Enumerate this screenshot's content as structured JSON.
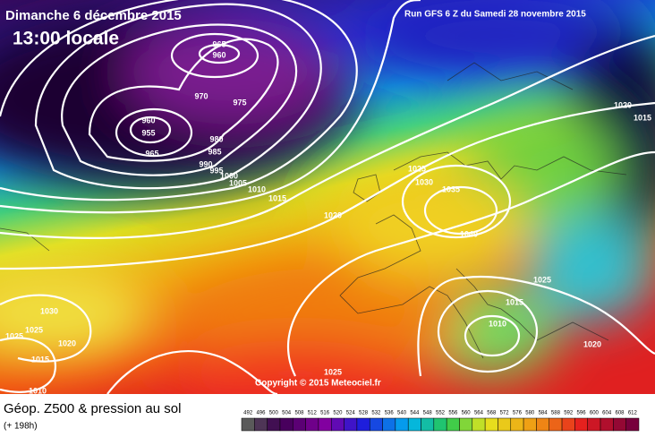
{
  "header": {
    "date": "Dimanche 6 décembre 2015",
    "time": "13:00 locale",
    "run": "Run GFS 6 Z du Samedi 28 novembre 2015"
  },
  "isobar_labels": [
    965,
    960,
    970,
    975,
    960,
    955,
    965,
    980,
    985,
    990,
    995,
    1000,
    1005,
    1010,
    1015,
    1020,
    1025,
    1030,
    1035,
    1040,
    1020,
    1015,
    1025,
    1015,
    1010,
    1020,
    1030,
    1025,
    1025,
    1020,
    1015,
    1010,
    1025
  ],
  "copyright": "Copyright © 2015 Meteociel.fr",
  "footer": {
    "title": "Géop. Z500 & pression au sol",
    "lead": "(+ 198h)"
  },
  "legend": {
    "scale": [
      492,
      496,
      500,
      504,
      508,
      512,
      516,
      520,
      524,
      528,
      532,
      536,
      540,
      544,
      548,
      552,
      556,
      560,
      564,
      568,
      572,
      576,
      580,
      584,
      588,
      592,
      596,
      600,
      604,
      608,
      612
    ]
  }
}
